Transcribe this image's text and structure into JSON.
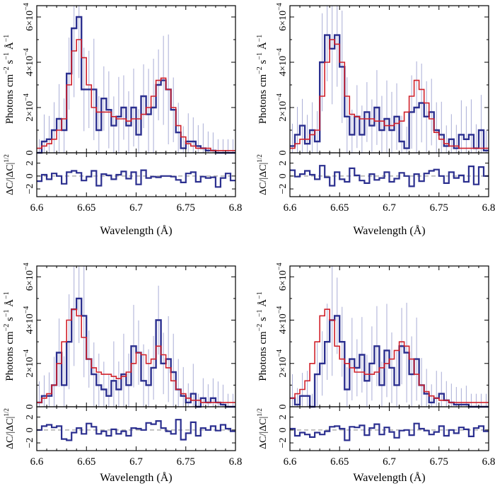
{
  "colors": {
    "observed": "#2b2f8f",
    "model": "#d0202a",
    "error": "#a9acd6",
    "axis": "#000000",
    "zero_line": "#888888"
  },
  "chart_data": [
    {
      "type": "line",
      "panel": "top-left",
      "xlabel": "Wavelength (Å)",
      "ylabel_parts": {
        "photons": "Photons cm",
        "sup1": "−2",
        "s": " s",
        "sup2": "−1",
        "a": " Å",
        "sup3": "−1"
      },
      "resid_label_parts": {
        "main": "ΔC/|ΔC|",
        "sup": "1/2"
      },
      "xlim": [
        6.6,
        6.8
      ],
      "ylim": [
        0,
        0.00065
      ],
      "resid_ylim": [
        -3.2,
        3.6
      ],
      "x_ticks": [
        "6.6",
        "6.65",
        "6.7",
        "6.75",
        "6.8"
      ],
      "y_ticks": [
        {
          "value": 0,
          "text": "0",
          "sup": ""
        },
        {
          "value": 0.0002,
          "text": "2×10",
          "sup": "−4"
        },
        {
          "value": 0.0004,
          "text": "4×10",
          "sup": "−4"
        },
        {
          "value": 0.0006,
          "text": "6×10",
          "sup": "−4"
        }
      ],
      "resid_ticks": [
        {
          "value": -2,
          "text": "−2"
        },
        {
          "value": 0,
          "text": "0"
        },
        {
          "value": 2,
          "text": "2"
        }
      ],
      "bin_start": 6.6,
      "bin_width": 0.005,
      "series": [
        {
          "name": "observed",
          "values": [
            0.0,
            5e-05,
            6e-05,
            0.0001,
            0.00015,
            0.0001,
            0.00035,
            0.00055,
            0.0006,
            0.00028,
            0.00028,
            0.00028,
            0.0001,
            0.00024,
            0.00019,
            0.00012,
            0.00016,
            0.0002,
            0.00012,
            0.0002,
            8e-05,
            0.00025,
            0.00017,
            0.0002,
            0.0003,
            0.00032,
            0.00028,
            0.00019,
            9e-05,
            2e-05,
            5e-05,
            5e-05,
            3e-05,
            2e-05,
            1e-05,
            1e-05,
            0.0,
            0.0,
            0.0,
            0.0
          ]
        },
        {
          "name": "model",
          "values": [
            2e-05,
            3e-05,
            4e-05,
            6e-05,
            0.0001,
            0.00015,
            0.0003,
            0.00045,
            0.0005,
            0.00042,
            0.0003,
            0.0002,
            0.00018,
            0.00018,
            0.00018,
            0.00016,
            0.00015,
            0.00015,
            0.00014,
            0.00015,
            0.00015,
            0.00017,
            0.0002,
            0.00025,
            0.00032,
            0.00033,
            0.00028,
            0.0002,
            0.00012,
            7e-05,
            4e-05,
            3e-05,
            2e-05,
            2e-05,
            2e-05,
            1e-05,
            1e-05,
            1e-05,
            1e-05,
            1e-05
          ]
        }
      ],
      "residuals": [
        -0.8,
        0.2,
        -0.5,
        0.4,
        0.0,
        -1.2,
        0.6,
        0.8,
        0.5,
        -0.7,
        -0.1,
        0.8,
        -1.5,
        0.3,
        0.1,
        -0.5,
        0.2,
        0.7,
        -0.4,
        0.6,
        -1.3,
        0.9,
        -0.3,
        -0.1,
        -0.2,
        0.0,
        0.0,
        -0.1,
        -0.6,
        -1.0,
        0.4,
        0.6,
        -0.9,
        -0.1,
        -0.3,
        -0.2,
        -1.7,
        -0.3,
        0.4,
        -0.7
      ]
    },
    {
      "type": "line",
      "panel": "top-right",
      "xlabel": "Wavelength (Å)",
      "ylabel_parts": {
        "photons": "Photons cm",
        "sup1": "−2",
        "s": " s",
        "sup2": "−1",
        "a": " Å",
        "sup3": "−1"
      },
      "resid_label_parts": {
        "main": "ΔC/|ΔC|",
        "sup": "1/2"
      },
      "xlim": [
        6.6,
        6.8
      ],
      "ylim": [
        0,
        0.00065
      ],
      "resid_ylim": [
        -3.2,
        3.6
      ],
      "x_ticks": [
        "6.6",
        "6.65",
        "6.7",
        "6.75",
        "6.8"
      ],
      "y_ticks": [
        {
          "value": 0,
          "text": "0",
          "sup": ""
        },
        {
          "value": 0.0002,
          "text": "2×10",
          "sup": "−4"
        },
        {
          "value": 0.0004,
          "text": "4×10",
          "sup": "−4"
        },
        {
          "value": 0.0006,
          "text": "6×10",
          "sup": "−4"
        }
      ],
      "resid_ticks": [
        {
          "value": -2,
          "text": "−2"
        },
        {
          "value": 0,
          "text": "0"
        },
        {
          "value": 2,
          "text": "2"
        }
      ],
      "bin_start": 6.6,
      "bin_width": 0.005,
      "series": [
        {
          "name": "observed",
          "values": [
            3e-05,
            8e-05,
            0.00012,
            4e-05,
            0.0001,
            5e-05,
            0.0004,
            0.00052,
            0.00046,
            0.00052,
            0.00038,
            0.00016,
            8e-05,
            0.00016,
            8e-05,
            0.00018,
            0.00012,
            0.0002,
            0.0001,
            0.00015,
            0.0001,
            0.00016,
            5e-05,
            2e-05,
            0.00018,
            0.0002,
            0.00022,
            0.00016,
            0.00018,
            0.0001,
            8e-05,
            3e-05,
            6e-05,
            2e-05,
            8e-05,
            6e-05,
            8e-05,
            2e-05,
            0.0001,
            1e-05
          ]
        },
        {
          "name": "model",
          "values": [
            2e-05,
            4e-05,
            6e-05,
            6e-05,
            8e-05,
            0.0001,
            0.00025,
            0.0004,
            0.0005,
            0.00048,
            0.0004,
            0.00025,
            0.00017,
            0.00016,
            0.00015,
            0.00015,
            0.00015,
            0.00014,
            0.00014,
            0.00012,
            0.00012,
            0.00013,
            0.00014,
            0.00018,
            0.00025,
            0.00032,
            0.00028,
            0.00022,
            0.00015,
            9e-05,
            6e-05,
            4e-05,
            3e-05,
            3e-05,
            2e-05,
            2e-05,
            2e-05,
            2e-05,
            2e-05,
            2e-05
          ]
        }
      ],
      "residuals": [
        0.9,
        -0.1,
        0.3,
        0.8,
        0.2,
        -0.5,
        1.6,
        -0.2,
        -1.5,
        0.6,
        -0.5,
        -0.9,
        1.2,
        0.1,
        -0.7,
        -1.1,
        0.3,
        -0.6,
        -0.3,
        0.6,
        -0.9,
        -0.4,
        0.5,
        0.0,
        -1.6,
        0.3,
        -0.8,
        0.4,
        0.8,
        1.0,
        0.0,
        -1.1,
        0.6,
        -0.3,
        0.1,
        -0.9,
        1.5,
        -1.3,
        1.4,
        0.0
      ]
    },
    {
      "type": "line",
      "panel": "bottom-left",
      "xlabel": "Wavelength (Å)",
      "ylabel_parts": {
        "photons": "Photons cm",
        "sup1": "−2",
        "s": " s",
        "sup2": "−1",
        "a": " Å",
        "sup3": "−1"
      },
      "resid_label_parts": {
        "main": "ΔC/|ΔC|",
        "sup": "1/2"
      },
      "xlim": [
        6.6,
        6.8
      ],
      "ylim": [
        0,
        0.00065
      ],
      "resid_ylim": [
        -3.2,
        3.6
      ],
      "x_ticks": [
        "6.6",
        "6.65",
        "6.7",
        "6.75",
        "6.8"
      ],
      "y_ticks": [
        {
          "value": 0,
          "text": "0",
          "sup": ""
        },
        {
          "value": 0.0002,
          "text": "2×10",
          "sup": "−4"
        },
        {
          "value": 0.0004,
          "text": "4×10",
          "sup": "−4"
        },
        {
          "value": 0.0006,
          "text": "6×10",
          "sup": "−4"
        }
      ],
      "resid_ticks": [
        {
          "value": -2,
          "text": "−2"
        },
        {
          "value": 0,
          "text": "0"
        },
        {
          "value": 2,
          "text": "2"
        }
      ],
      "bin_start": 6.6,
      "bin_width": 0.005,
      "series": [
        {
          "name": "observed",
          "values": [
            2e-05,
            5e-05,
            5e-05,
            0.0001,
            0.00025,
            0.0001,
            0.0003,
            0.00045,
            0.0005,
            0.00042,
            0.00022,
            0.00015,
            0.0001,
            8e-05,
            5e-05,
            0.00012,
            8e-05,
            0.00015,
            0.0001,
            0.00028,
            0.00025,
            0.00012,
            0.0001,
            0.00018,
            0.0004,
            0.0002,
            0.00022,
            0.00016,
            8e-05,
            5e-05,
            2e-05,
            6e-05,
            0.0,
            4e-05,
            2e-05,
            4e-05,
            2e-05,
            1e-05,
            0.0,
            0.0
          ]
        },
        {
          "name": "model",
          "values": [
            2e-05,
            4e-05,
            6e-05,
            0.0001,
            0.0002,
            0.0003,
            0.0004,
            0.00045,
            0.00042,
            0.00032,
            0.00022,
            0.00018,
            0.00016,
            0.00015,
            0.00015,
            0.00014,
            0.00013,
            0.00014,
            0.00016,
            0.0002,
            0.00025,
            0.00024,
            0.0002,
            0.00022,
            0.00028,
            0.00024,
            0.00018,
            0.00012,
            8e-05,
            6e-05,
            4e-05,
            3e-05,
            3e-05,
            2e-05,
            2e-05,
            2e-05,
            2e-05,
            2e-05,
            2e-05,
            2e-05
          ]
        }
      ],
      "residuals": [
        0.0,
        0.6,
        0.8,
        0.4,
        0.6,
        -1.4,
        -1.6,
        -0.4,
        0.3,
        -0.6,
        1.0,
        0.5,
        -0.6,
        -0.2,
        -0.9,
        0.1,
        -0.6,
        -0.2,
        -0.9,
        0.3,
        0.2,
        0.0,
        1.1,
        0.9,
        1.4,
        0.3,
        -0.2,
        -0.6,
        1.6,
        -1.5,
        -0.5,
        1.2,
        -0.9,
        0.3,
        0.0,
        0.6,
        -0.1,
        0.8,
        0.2,
        -0.2
      ]
    },
    {
      "type": "line",
      "panel": "bottom-right",
      "xlabel": "Wavelength (Å)",
      "ylabel_parts": {
        "photons": "Photons cm",
        "sup1": "−2",
        "s": " s",
        "sup2": "−1",
        "a": " Å",
        "sup3": "−1"
      },
      "resid_label_parts": {
        "main": "ΔC/|ΔC|",
        "sup": "1/2"
      },
      "xlim": [
        6.6,
        6.8
      ],
      "ylim": [
        0,
        0.00065
      ],
      "resid_ylim": [
        -3.2,
        3.6
      ],
      "x_ticks": [
        "6.6",
        "6.65",
        "6.7",
        "6.75",
        "6.8"
      ],
      "y_ticks": [
        {
          "value": 0,
          "text": "0",
          "sup": ""
        },
        {
          "value": 0.0002,
          "text": "2×10",
          "sup": "−4"
        },
        {
          "value": 0.0004,
          "text": "4×10",
          "sup": "−4"
        },
        {
          "value": 0.0006,
          "text": "6×10",
          "sup": "−4"
        }
      ],
      "resid_ticks": [
        {
          "value": -2,
          "text": "−2"
        },
        {
          "value": 0,
          "text": "0"
        },
        {
          "value": 2,
          "text": "2"
        }
      ],
      "bin_start": 6.6,
      "bin_width": 0.005,
      "series": [
        {
          "name": "observed",
          "values": [
            4e-05,
            1e-05,
            5e-05,
            5e-05,
            0.0,
            0.00015,
            0.0002,
            0.0003,
            0.0004,
            0.00042,
            0.0003,
            8e-05,
            0.00022,
            0.00018,
            0.00024,
            0.00012,
            0.0002,
            0.00028,
            0.0001,
            0.00026,
            0.00018,
            0.0001,
            0.00028,
            0.00025,
            0.00015,
            0.00022,
            0.0001,
            6e-05,
            2e-05,
            4e-05,
            6e-05,
            3e-05,
            2e-05,
            1e-05,
            1e-05,
            1e-05,
            0.0,
            0.0,
            0.0,
            0.0
          ]
        },
        {
          "name": "model",
          "values": [
            4e-05,
            6e-05,
            8e-05,
            0.00012,
            0.0002,
            0.0003,
            0.00042,
            0.00045,
            0.0004,
            0.00028,
            0.00022,
            0.0002,
            0.00018,
            0.00016,
            0.00016,
            0.00015,
            0.00015,
            0.00016,
            0.00018,
            0.0002,
            0.00022,
            0.00026,
            0.0003,
            0.00028,
            0.00022,
            0.00015,
            0.0001,
            7e-05,
            5e-05,
            4e-05,
            3e-05,
            3e-05,
            2e-05,
            2e-05,
            2e-05,
            2e-05,
            2e-05,
            2e-05,
            2e-05,
            2e-05
          ]
        }
      ],
      "residuals": [
        0.2,
        -0.9,
        -0.4,
        -0.7,
        -1.1,
        -0.4,
        -0.7,
        -0.2,
        0.5,
        0.6,
        0.2,
        -1.6,
        0.5,
        0.4,
        0.7,
        -0.8,
        0.3,
        0.9,
        -0.7,
        0.4,
        -0.3,
        -1.2,
        -0.1,
        0.0,
        -0.8,
        1.0,
        0.2,
        -0.1,
        -0.7,
        -0.3,
        0.6,
        -0.9,
        0.0,
        -0.5,
        0.4,
        0.1,
        -1.0,
        0.3,
        0.6,
        -0.2
      ]
    }
  ]
}
